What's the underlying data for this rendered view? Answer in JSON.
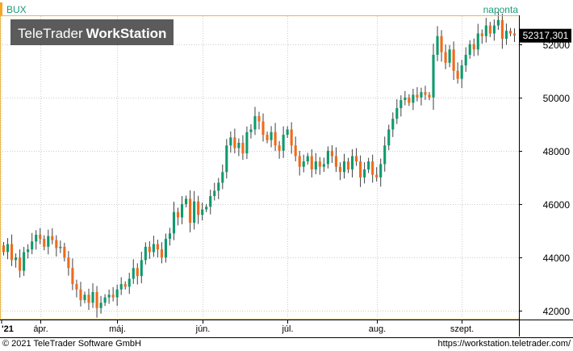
{
  "header": {
    "symbol": "BUX",
    "period": "naponta",
    "watermark_brand": "TeleTrader",
    "watermark_product": "WorkStation"
  },
  "price_tag": "52317,301",
  "footer": {
    "copyright": "© 2021 TeleTrader Software GmbH",
    "url": "https://workstation.teletrader.com/"
  },
  "colors": {
    "up": "#0e9a6e",
    "down": "#f06a1b",
    "symbol_marker": "#f5a623",
    "period_text": "#1a9a7a",
    "plot_border": "#e8b84a",
    "grid": "#cccccc"
  },
  "chart_data": {
    "type": "candlestick",
    "title": "BUX",
    "period": "naponta",
    "ylim": [
      41700,
      53050
    ],
    "yticks": [
      42000,
      44000,
      46000,
      48000,
      50000,
      52000
    ],
    "ytick_labels": [
      "42000",
      "44000",
      "46000",
      "48000",
      "50000",
      "52000"
    ],
    "xtick_labels": [
      {
        "label": "'21",
        "index": 0
      },
      {
        "label": "ápr.",
        "index": 9
      },
      {
        "label": "máj.",
        "index": 28
      },
      {
        "label": "jún.",
        "index": 49
      },
      {
        "label": "júl.",
        "index": 70
      },
      {
        "label": "aug.",
        "index": 92
      },
      {
        "label": "szept.",
        "index": 113
      }
    ],
    "grid": true,
    "last_value": 52317.301,
    "closes": [
      44200,
      44500,
      43900,
      44000,
      43500,
      44200,
      44300,
      44600,
      44850,
      44700,
      44400,
      44800,
      44650,
      44350,
      44400,
      44000,
      43600,
      43000,
      42800,
      42400,
      42600,
      42300,
      42700,
      42100,
      42300,
      42500,
      42600,
      42500,
      42800,
      43000,
      42900,
      43200,
      43600,
      43300,
      43900,
      44400,
      44200,
      44500,
      44300,
      44000,
      44700,
      44900,
      45700,
      45500,
      46000,
      46200,
      45300,
      46100,
      45600,
      45800,
      45900,
      46300,
      46500,
      46800,
      47200,
      48200,
      48500,
      48100,
      48300,
      47900,
      48700,
      48800,
      49300,
      49100,
      48600,
      48400,
      48700,
      48200,
      48000,
      48600,
      48800,
      48200,
      47800,
      47400,
      47600,
      47800,
      47300,
      47600,
      47400,
      47500,
      48000,
      47800,
      47400,
      47200,
      47600,
      47300,
      47800,
      47600,
      47000,
      47300,
      47600,
      47100,
      47000,
      47500,
      48200,
      48800,
      49200,
      49600,
      49900,
      50000,
      49800,
      50100,
      50000,
      50200,
      50100,
      50000,
      51600,
      52300,
      51700,
      51300,
      51800,
      51000,
      50700,
      51200,
      51600,
      52000,
      51800,
      52400,
      52300,
      52700,
      52400,
      52700,
      52900,
      52200,
      52500,
      52400,
      52317.301
    ]
  }
}
